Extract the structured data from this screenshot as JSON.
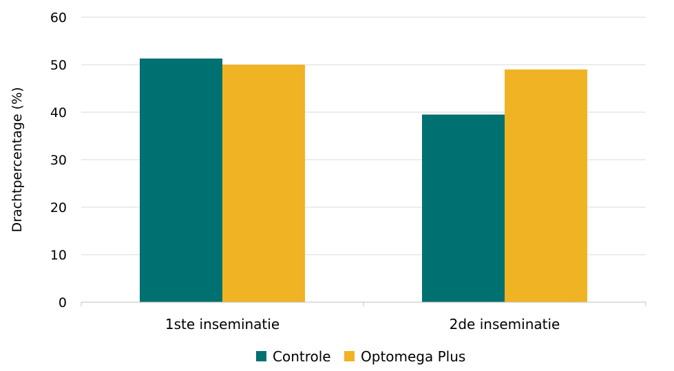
{
  "chart_data": {
    "type": "bar",
    "title": "",
    "xlabel": "",
    "ylabel": "Drachtpercentage (%)",
    "ylim": [
      0,
      60
    ],
    "yticks": [
      0,
      10,
      20,
      30,
      40,
      50,
      60
    ],
    "grid": true,
    "legend_position": "bottom",
    "categories": [
      "1ste inseminatie",
      "2de inseminatie"
    ],
    "series": [
      {
        "name": "Controle",
        "color": "#007070",
        "values": [
          51.3,
          39.5
        ]
      },
      {
        "name": "Optomega Plus",
        "color": "#F0B323",
        "values": [
          50.0,
          49.0
        ]
      }
    ]
  }
}
